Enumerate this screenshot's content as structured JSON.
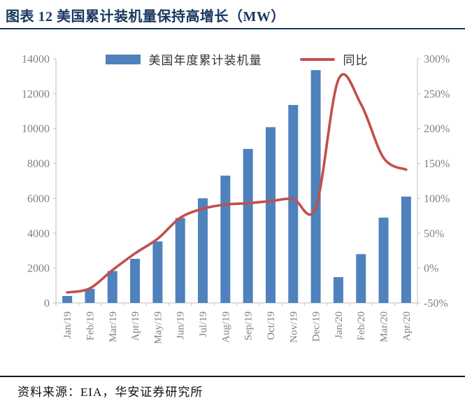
{
  "header": {
    "title": "图表 12 美国累计装机量保持高增长（MW）"
  },
  "legend": {
    "items": [
      {
        "label": "美国年度累计装机量",
        "swatch": "bar-swatch"
      },
      {
        "label": "同比",
        "swatch": "line-swatch"
      }
    ]
  },
  "footer": {
    "source": "资料来源：EIA，华安证券研究所"
  },
  "colors": {
    "bar": "#4F81BD",
    "line": "#C0504D",
    "title": "#17375E",
    "axis_text": "#808080",
    "axis_line": "#BFBFBF"
  },
  "chart_data": {
    "type": "bar",
    "subtype": "bar+line-combo",
    "categories": [
      "Jan/19",
      "Feb/19",
      "Mar/19",
      "Apr/19",
      "May/19",
      "Jun/19",
      "Jul/19",
      "Aug/19",
      "Sep/19",
      "Oct/19",
      "Nov/19",
      "Dec/19",
      "Jan/20",
      "Feb/20",
      "Mar/20",
      "Apr/20"
    ],
    "series": [
      {
        "name": "美国年度累计装机量",
        "type": "bar",
        "yaxis": "left",
        "values": [
          400,
          810,
          1830,
          2530,
          3530,
          4870,
          6000,
          7300,
          8830,
          10080,
          11350,
          13350,
          1480,
          2800,
          4890,
          6100
        ]
      },
      {
        "name": "同比",
        "type": "line",
        "yaxis": "right",
        "unit": "%",
        "values": [
          -35,
          -29,
          -3,
          21,
          42,
          72,
          85,
          91,
          93,
          96,
          99,
          87,
          270,
          235,
          158,
          141
        ]
      }
    ],
    "left_axis": {
      "min": 0,
      "max": 14000,
      "step": 2000,
      "tick_labels": [
        "0",
        "2000",
        "4000",
        "6000",
        "8000",
        "10000",
        "12000",
        "14000"
      ]
    },
    "right_axis": {
      "min": -50,
      "max": 300,
      "step": 50,
      "tick_labels": [
        "-50%",
        "0%",
        "50%",
        "100%",
        "150%",
        "200%",
        "250%",
        "300%"
      ]
    },
    "grid": "off",
    "legend_position": "top-center",
    "title": "图表 12 美国累计装机量保持高增长（MW）",
    "x_label_rotation": -90
  }
}
